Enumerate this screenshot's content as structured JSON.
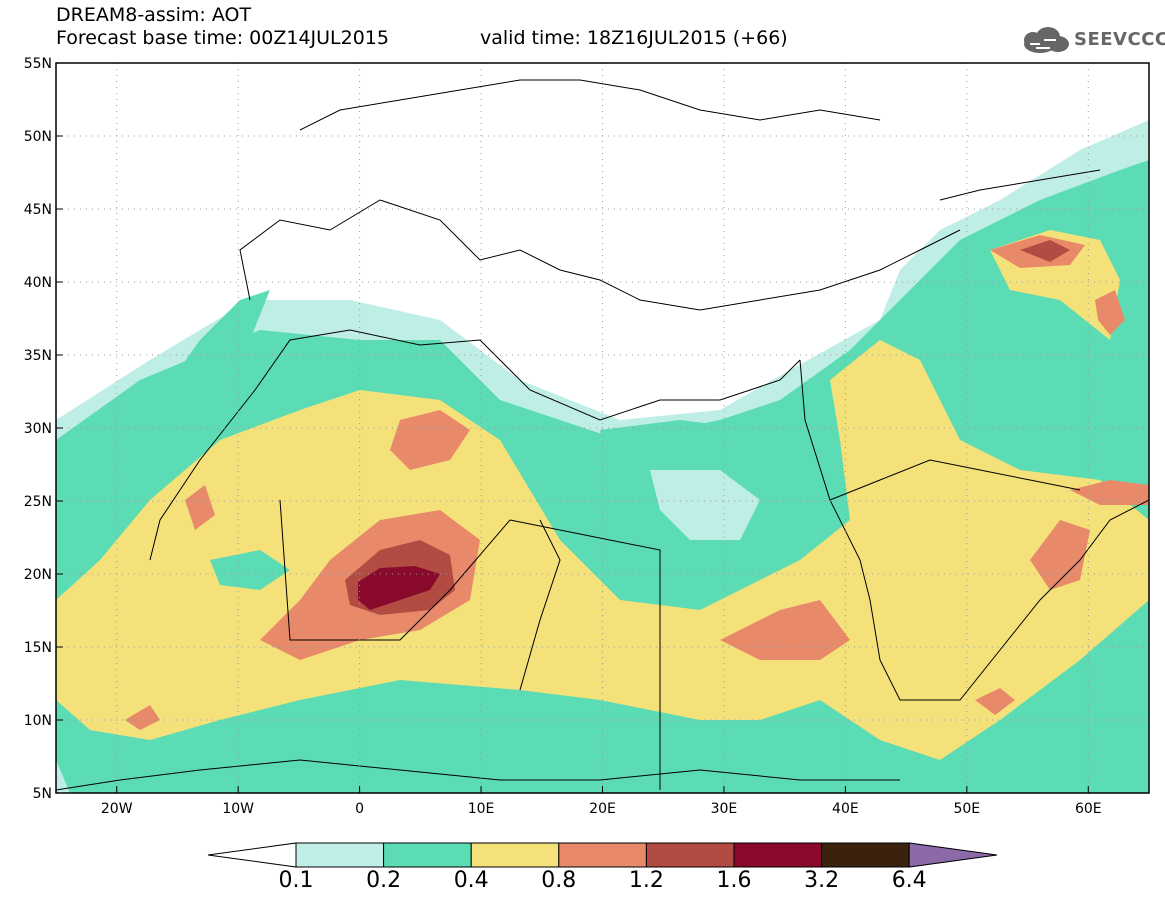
{
  "header": {
    "title": "DREAM8-assim: AOT",
    "base_time": "Forecast base time: 00Z14JUL2015",
    "valid_time": "valid time: 18Z16JUL2015 (+66)"
  },
  "logo": {
    "text": "SEEVCCC",
    "icon": "cloud-icon"
  },
  "map": {
    "lon_range": [
      -25,
      65
    ],
    "lat_range": [
      5,
      55
    ],
    "lat_ticks": [
      "5N",
      "10N",
      "15N",
      "20N",
      "25N",
      "30N",
      "35N",
      "40N",
      "45N",
      "50N",
      "55N"
    ],
    "lon_ticks": [
      "20W",
      "10W",
      "0",
      "10E",
      "20E",
      "30E",
      "40E",
      "50E",
      "60E"
    ],
    "grid": true
  },
  "colorbar": {
    "levels": [
      "0.1",
      "0.2",
      "0.4",
      "0.8",
      "1.2",
      "1.6",
      "3.2",
      "6.4"
    ],
    "colors": [
      "#bfeee6",
      "#5cdcb4",
      "#f4e17a",
      "#e8896a",
      "#b24c42",
      "#8a0a2e",
      "#3a220f"
    ],
    "under_color": "#ffffff",
    "over_color": "#8c6aa8"
  }
}
